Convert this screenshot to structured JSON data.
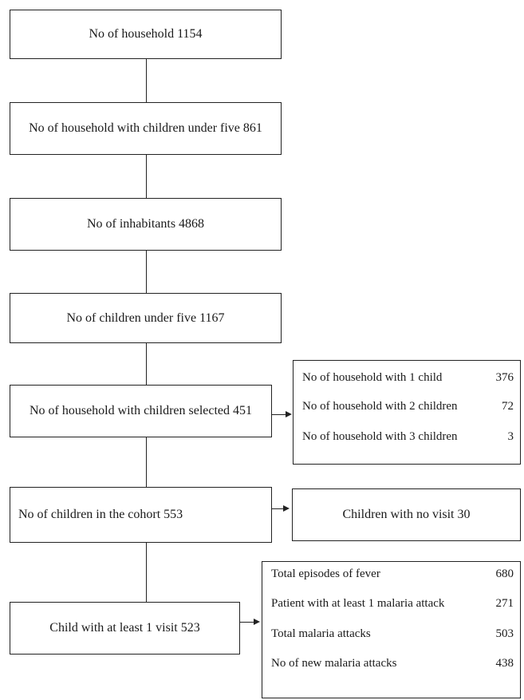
{
  "flow": {
    "households": "No of household 1154",
    "households_u5": "No of household with children under five 861",
    "inhabitants": "No of inhabitants 4868",
    "children_u5": "No of children under five 1167",
    "households_selected": "No of household with children selected 451",
    "cohort": "No of children in the cohort 553",
    "at_least_one_visit": "Child with at least 1 visit 523"
  },
  "household_breakdown": [
    {
      "label": "No of household with 1 child",
      "value": "376"
    },
    {
      "label": "No of household with 2 children",
      "value": "72"
    },
    {
      "label": "No of household with 3 children",
      "value": "3"
    }
  ],
  "no_visit": "Children with no visit 30",
  "outcomes": [
    {
      "label": "Total episodes of fever",
      "value": "680"
    },
    {
      "label": "Patient with at least 1 malaria attack",
      "value": "271"
    },
    {
      "label": "Total malaria attacks",
      "value": "503"
    },
    {
      "label": "No of new malaria attacks",
      "value": "438"
    }
  ]
}
